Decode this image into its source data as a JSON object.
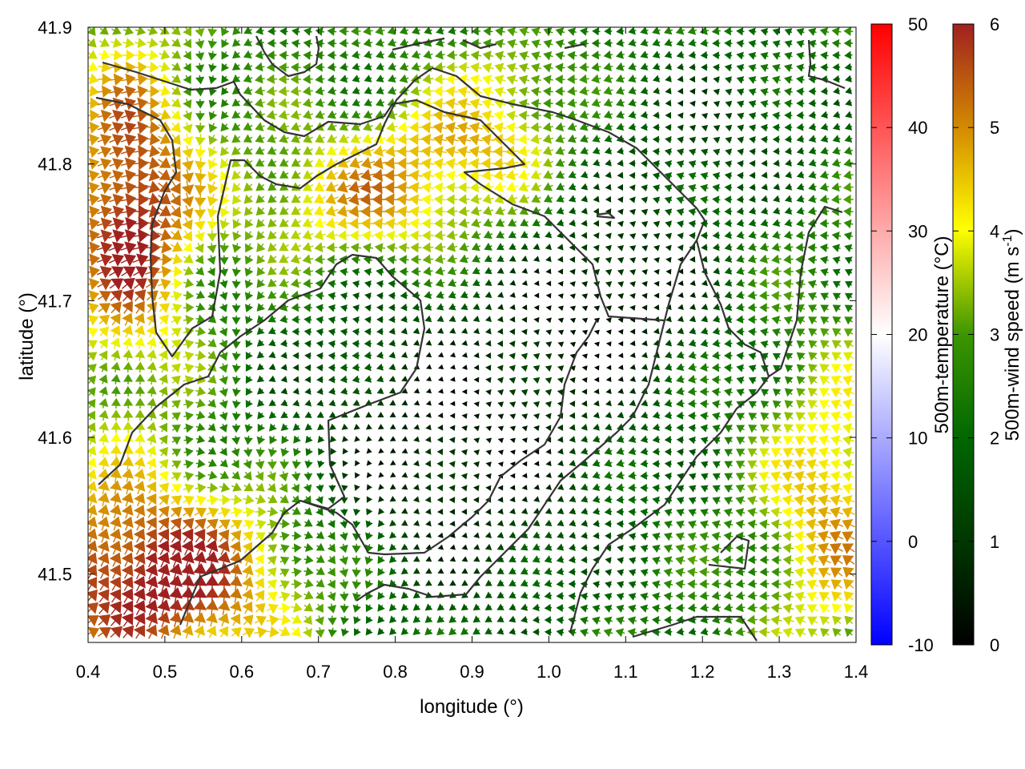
{
  "chart_data": {
    "type": "vector-field",
    "title": "",
    "xlabel": "longitude (°)",
    "ylabel": "latitude (°)",
    "xlim": [
      0.4,
      1.4
    ],
    "ylim": [
      41.45,
      41.9
    ],
    "x_ticks": [
      "0.4",
      "0.5",
      "0.6",
      "0.7",
      "0.8",
      "0.9",
      "1.0",
      "1.1",
      "1.2",
      "1.3",
      "1.4"
    ],
    "y_ticks": [
      "41.5",
      "41.6",
      "41.7",
      "41.8",
      "41.9"
    ],
    "grid": false,
    "temperature_colorbar": {
      "label": "500m-temperature (°C)",
      "range": [
        -10,
        50
      ],
      "ticks": [
        "-10",
        "0",
        "10",
        "20",
        "30",
        "40",
        "50"
      ],
      "colors": [
        "#0000ff",
        "#ffffff",
        "#ff0000"
      ]
    },
    "windspeed_colorbar": {
      "label": "500m-wind speed (m s-1)",
      "label_main": "500m-wind speed (m s",
      "label_sup": "-1",
      "label_end": ")",
      "range": [
        0,
        6
      ],
      "ticks": [
        "0",
        "1",
        "2",
        "3",
        "4",
        "5",
        "6"
      ],
      "colors": [
        "#000000",
        "#005500",
        "#1e7a00",
        "#8db800",
        "#ffff00",
        "#d48c00",
        "#a02020"
      ]
    },
    "wind_field_description": "arrow vectors colored by wind speed; strong SW/NE flows at west and east edges, weak flow in central basin",
    "coastlines": true
  }
}
